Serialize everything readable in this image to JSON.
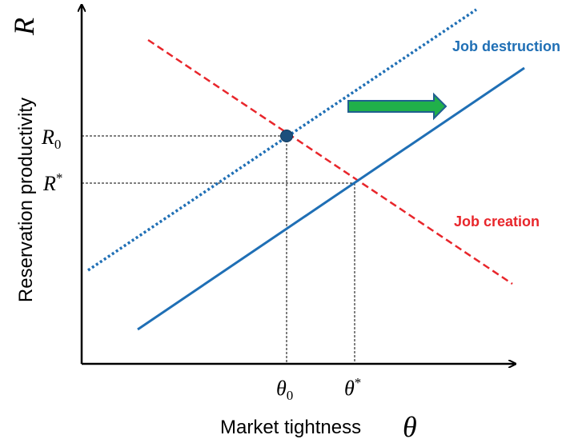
{
  "axes": {
    "y": {
      "label": "Reservation productivity",
      "symbol": "R"
    },
    "x": {
      "label": "Market tightness",
      "symbol": "θ"
    }
  },
  "ticks": {
    "y": [
      {
        "base": "R",
        "sub": "0"
      },
      {
        "base": "R",
        "sup": "*"
      }
    ],
    "x": [
      {
        "base": "θ",
        "sub": "0"
      },
      {
        "base": "θ",
        "sup": "*"
      }
    ]
  },
  "curves": {
    "destruction": "Job destruction",
    "creation": "Job creation"
  }
}
